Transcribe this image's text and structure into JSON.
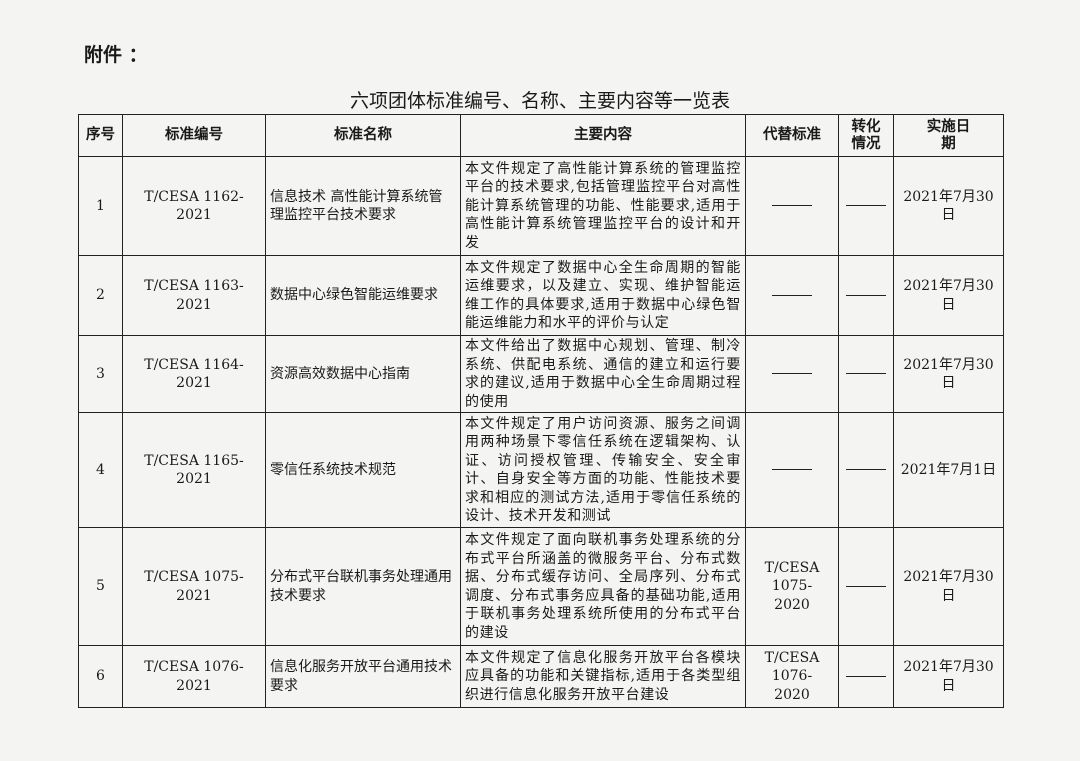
{
  "attachment_label": "附件 ：",
  "title": "六项团体标准编号、名称、主要内容等一览表",
  "headers": [
    "序号",
    "标准编号",
    "标准名称",
    "主要内容",
    "代替标准",
    "转化情况",
    "实施日期"
  ],
  "rows": [
    {
      "no": "1",
      "code": "T/CESA 1162-2021",
      "name": "信息技术 高性能计算系统管理监控平台技术要求",
      "content": "本文件规定了高性能计算系统的管理监控平台的技术要求,包括管理监控平台对高性能计算系统管理的功能、性能要求,适用于高性能计算系统管理监控平台的设计和开发",
      "replaces": "——",
      "conversion": "——",
      "date": "2021年7月30日"
    },
    {
      "no": "2",
      "code": "T/CESA 1163-2021",
      "name": "数据中心绿色智能运维要求",
      "content": "本文件规定了数据中心全生命周期的智能运维要求，以及建立、实现、维护智能运维工作的具体要求,适用于数据中心绿色智能运维能力和水平的评价与认定",
      "replaces": "——",
      "conversion": "——",
      "date": "2021年7月30日"
    },
    {
      "no": "3",
      "code": "T/CESA 1164-2021",
      "name": "资源高效数据中心指南",
      "content": "本文件给出了数据中心规划、管理、制冷系统、供配电系统、通信的建立和运行要求的建议,适用于数据中心全生命周期过程的使用",
      "replaces": "——",
      "conversion": "——",
      "date": "2021年7月30日"
    },
    {
      "no": "4",
      "code": "T/CESA 1165-2021",
      "name": "零信任系统技术规范",
      "content": "本文件规定了用户访问资源、服务之间调用两种场景下零信任系统在逻辑架构、认证、访问授权管理、传输安全、安全审计、自身安全等方面的功能、性能技术要求和相应的测试方法,适用于零信任系统的设计、技术开发和测试",
      "replaces": "——",
      "conversion": "——",
      "date": "2021年7月1日"
    },
    {
      "no": "5",
      "code": "T/CESA 1075-2021",
      "name": "分布式平台联机事务处理通用技术要求",
      "content": "本文件规定了面向联机事务处理系统的分布式平台所涵盖的微服务平台、分布式数据、分布式缓存访问、全局序列、分布式调度、分布式事务应具备的基础功能,适用于联机事务处理系统所使用的分布式平台的建设",
      "replaces": "T/CESA 1075-2020",
      "conversion": "——",
      "date": "2021年7月30日"
    },
    {
      "no": "6",
      "code": "T/CESA 1076-2021",
      "name": "信息化服务开放平台通用技术要求",
      "content": "本文件规定了信息化服务开放平台各模块应具备的功能和关键指标,适用于各类型组织进行信息化服务开放平台建设",
      "replaces": "T/CESA 1076-2020",
      "conversion": "——",
      "date": "2021年7月30日"
    }
  ]
}
